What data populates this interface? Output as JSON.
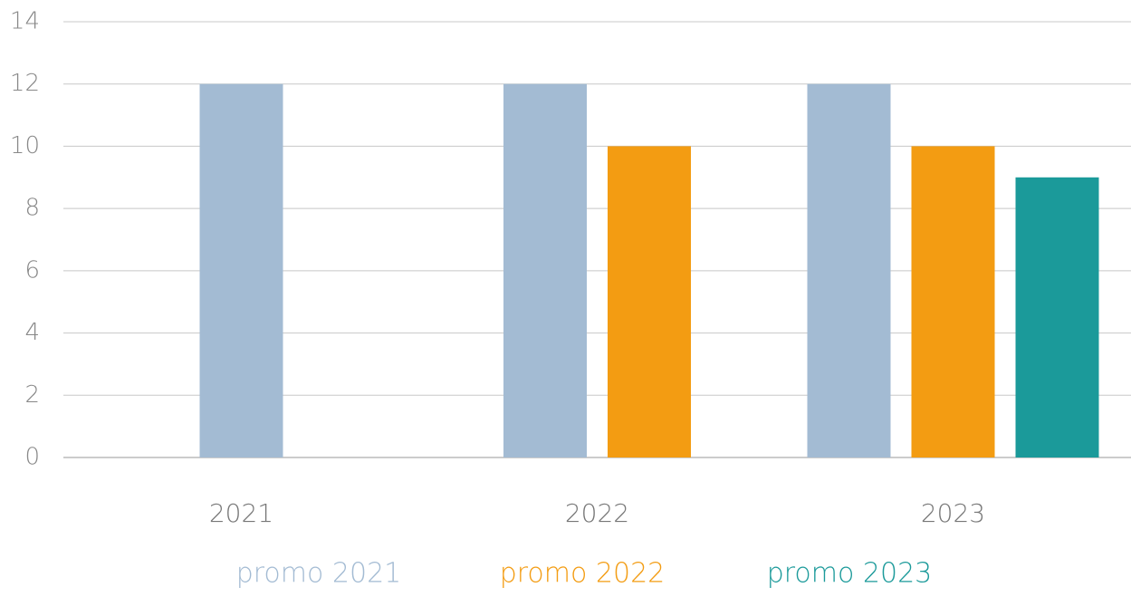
{
  "chart_data": {
    "type": "bar",
    "categories": [
      "2021",
      "2022",
      "2023"
    ],
    "series": [
      {
        "name": "promo 2021",
        "color": "#a3bbd3",
        "values": [
          12,
          12,
          12
        ]
      },
      {
        "name": "promo 2022",
        "color": "#f39c12",
        "values": [
          null,
          10,
          10
        ]
      },
      {
        "name": "promo 2023",
        "color": "#1b9a9a",
        "values": [
          null,
          null,
          9
        ]
      }
    ],
    "ylim": [
      0,
      14
    ],
    "yticks": [
      0,
      2,
      4,
      6,
      8,
      10,
      12,
      14
    ],
    "grid": true,
    "legend": "bottom"
  }
}
